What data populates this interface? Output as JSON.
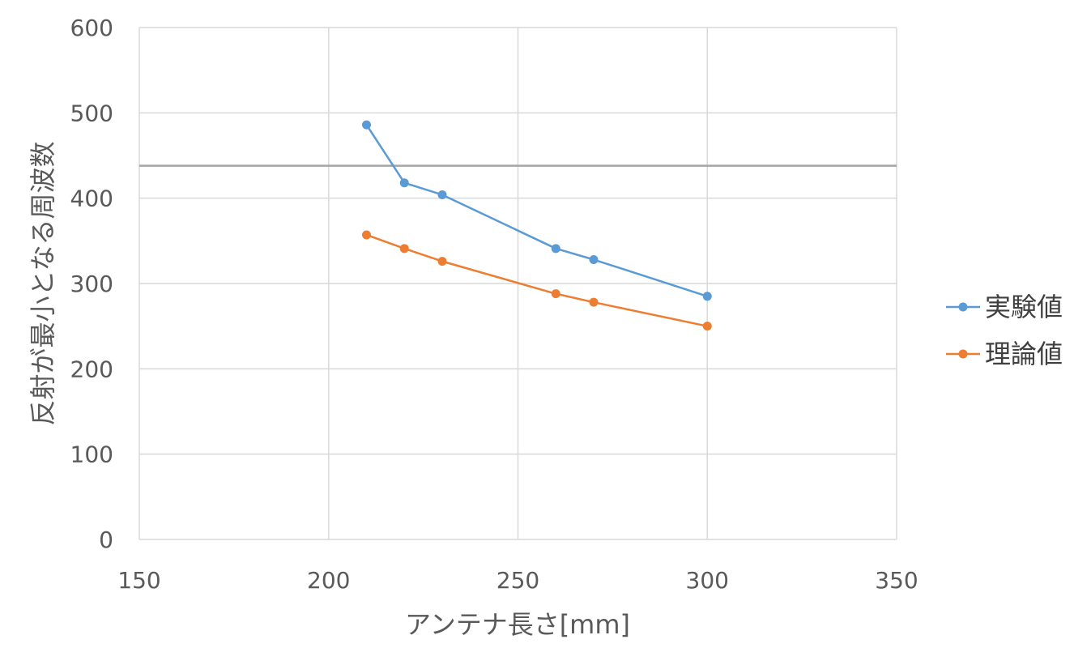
{
  "chart_data": {
    "type": "line",
    "title": "",
    "xlabel": "アンテナ長さ[mm]",
    "ylabel": "反射が最小となる周波数",
    "xlim": [
      150,
      350
    ],
    "ylim": [
      0,
      600
    ],
    "xticks": [
      150,
      200,
      250,
      300,
      350
    ],
    "yticks": [
      0,
      100,
      200,
      300,
      400,
      500,
      600
    ],
    "grid": true,
    "legend_position": "right",
    "reference_line": {
      "y": 438,
      "color": "#a5a5a5"
    },
    "series": [
      {
        "name": "実験値",
        "color": "#5b9bd5",
        "x": [
          210,
          220,
          230,
          260,
          270,
          300
        ],
        "y": [
          486,
          418,
          404,
          341,
          328,
          285
        ]
      },
      {
        "name": "理論値",
        "color": "#ed7d31",
        "x": [
          210,
          220,
          230,
          260,
          270,
          300
        ],
        "y": [
          357,
          341,
          326,
          288,
          278,
          250
        ]
      }
    ]
  }
}
